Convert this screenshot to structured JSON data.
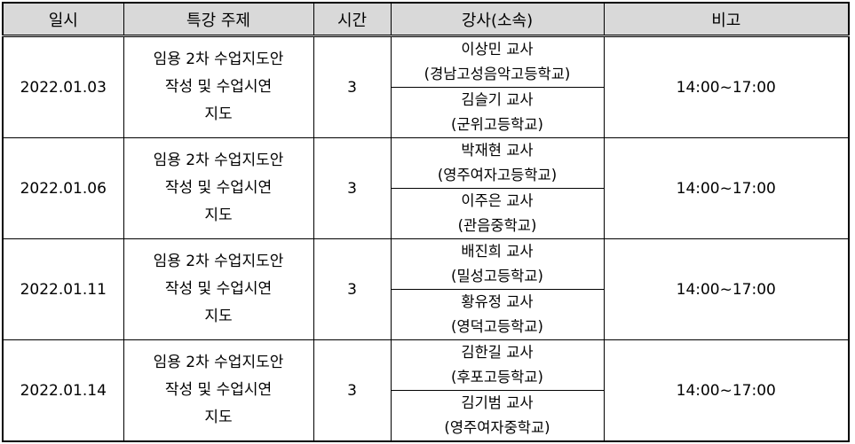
{
  "headers": [
    "일시",
    "특강 주제",
    "시간",
    "강사(소속)",
    "비고"
  ],
  "rows": [
    {
      "date": "2022.01.03",
      "topic": [
        "임용 2차 수업지도안",
        "작성 및 수업시연",
        "지도"
      ],
      "hours": "3",
      "lecturers": [
        {
          "name": "이상민 교사",
          "org": "(경남고성음악고등학교)"
        },
        {
          "name": "김슬기 교사",
          "org": "(군위고등학교)"
        }
      ],
      "note": "14:00~17:00"
    },
    {
      "date": "2022.01.06",
      "topic": [
        "임용 2차 수업지도안",
        "작성 및 수업시연",
        "지도"
      ],
      "hours": "3",
      "lecturers": [
        {
          "name": "박재현 교사",
          "org": "(영주여자고등학교)"
        },
        {
          "name": "이주은 교사",
          "org": "(관음중학교)"
        }
      ],
      "note": "14:00~17:00"
    },
    {
      "date": "2022.01.11",
      "topic": [
        "임용 2차 수업지도안",
        "작성 및 수업시연",
        "지도"
      ],
      "hours": "3",
      "lecturers": [
        {
          "name": "배진희 교사",
          "org": "(밀성고등학교)"
        },
        {
          "name": "황유정 교사",
          "org": "(영덕고등학교)"
        }
      ],
      "note": "14:00~17:00"
    },
    {
      "date": "2022.01.14",
      "topic": [
        "임용 2차 수업지도안",
        "작성 및 수업시연",
        "지도"
      ],
      "hours": "3",
      "lecturers": [
        {
          "name": "김한길 교사",
          "org": "(후포고등학교)"
        },
        {
          "name": "김기범 교사",
          "org": "(영주여자중학교)"
        }
      ],
      "note": "14:00~17:00"
    }
  ]
}
